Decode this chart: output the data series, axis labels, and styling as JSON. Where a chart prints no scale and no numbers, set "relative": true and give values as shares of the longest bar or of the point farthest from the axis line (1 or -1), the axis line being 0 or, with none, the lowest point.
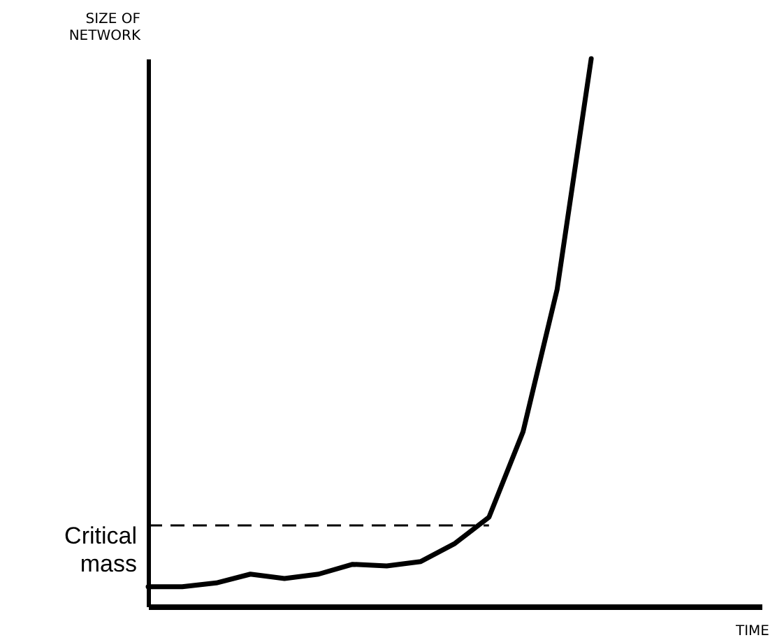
{
  "chart_data": {
    "type": "line",
    "relative": true,
    "xlabel": "TIME",
    "ylabel": "SIZE OF NETWORK",
    "categories": [
      null,
      null,
      null,
      null,
      null,
      null,
      null,
      null,
      null,
      null,
      null,
      null,
      null,
      null,
      null,
      null,
      null,
      null,
      null
    ],
    "series": [
      {
        "color": "#000000",
        "values": [
          0.036,
          0.036,
          0.043,
          0.059,
          0.051,
          0.059,
          0.077,
          0.074,
          0.082,
          0.115,
          0.163,
          0.319,
          0.579,
          1,
          null,
          null,
          null,
          null,
          null
        ]
      }
    ],
    "ref_lines": [
      {
        "axis": "y",
        "value": 0.148,
        "label": "Critical mass",
        "line_style": "dashed",
        "color": "#000000"
      }
    ],
    "grid": false,
    "legend": false
  }
}
